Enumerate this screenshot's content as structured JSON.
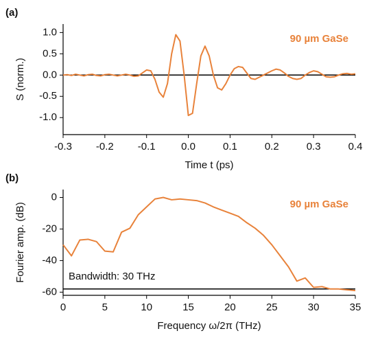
{
  "chart_data": [
    {
      "type": "line",
      "panel_label": "(a)",
      "ylabel": "S (norm.)",
      "xlabel": "Time t (ps)",
      "annotation": "90 µm GaSe",
      "color": "#e8823a",
      "hline": 0,
      "x": [
        -0.3,
        -0.29,
        -0.28,
        -0.27,
        -0.26,
        -0.25,
        -0.24,
        -0.23,
        -0.22,
        -0.21,
        -0.2,
        -0.19,
        -0.18,
        -0.17,
        -0.16,
        -0.15,
        -0.14,
        -0.13,
        -0.12,
        -0.11,
        -0.1,
        -0.09,
        -0.08,
        -0.07,
        -0.06,
        -0.05,
        -0.04,
        -0.03,
        -0.02,
        -0.01,
        0,
        0.01,
        0.02,
        0.03,
        0.04,
        0.05,
        0.06,
        0.07,
        0.08,
        0.09,
        0.1,
        0.11,
        0.12,
        0.13,
        0.14,
        0.15,
        0.16,
        0.17,
        0.18,
        0.19,
        0.2,
        0.21,
        0.22,
        0.23,
        0.24,
        0.25,
        0.26,
        0.27,
        0.28,
        0.29,
        0.3,
        0.31,
        0.32,
        0.33,
        0.34,
        0.35,
        0.36,
        0.37,
        0.38,
        0.39,
        0.4
      ],
      "values": [
        0,
        0.01,
        -0.01,
        0.02,
        0,
        -0.02,
        0.01,
        0.02,
        -0.01,
        -0.02,
        0.01,
        0.02,
        0,
        -0.02,
        0,
        0.02,
        0,
        -0.03,
        -0.02,
        0.05,
        0.12,
        0.1,
        -0.1,
        -0.4,
        -0.52,
        -0.2,
        0.5,
        0.95,
        0.8,
        0,
        -0.95,
        -0.9,
        -0.2,
        0.45,
        0.68,
        0.45,
        0,
        -0.3,
        -0.35,
        -0.2,
        0,
        0.15,
        0.2,
        0.18,
        0.05,
        -0.08,
        -0.1,
        -0.05,
        0,
        0.05,
        0.1,
        0.14,
        0.12,
        0.05,
        -0.03,
        -0.08,
        -0.1,
        -0.08,
        0,
        0.06,
        0.1,
        0.08,
        0.02,
        -0.04,
        -0.05,
        -0.04,
        0,
        0.03,
        0.04,
        0.02,
        0.03
      ],
      "xlim": [
        -0.3,
        0.4
      ],
      "ylim": [
        -1.4,
        1.2
      ],
      "xticks": [
        -0.3,
        -0.2,
        -0.1,
        {
          "value": 0,
          "label": "0.0"
        },
        0.1,
        0.2,
        0.3,
        0.4
      ],
      "yticks": [
        {
          "value": 1,
          "label": "1.0"
        },
        0.5,
        {
          "value": 0,
          "label": "0.0"
        },
        -0.5,
        {
          "value": -1,
          "label": "-1.0"
        }
      ]
    },
    {
      "type": "line",
      "panel_label": "(b)",
      "ylabel": "Fourier amp. (dB)",
      "xlabel": "Frequency ω/2π (THz)",
      "annotation": "90 µm GaSe",
      "hline_label": "Bandwidth: 30 THz",
      "color": "#e8823a",
      "hline": -58,
      "x": [
        0,
        1,
        2,
        3,
        4,
        5,
        6,
        7,
        8,
        9,
        10,
        11,
        12,
        13,
        14,
        15,
        16,
        17,
        18,
        19,
        20,
        21,
        22,
        23,
        24,
        25,
        26,
        27,
        28,
        29,
        30,
        31,
        32,
        33,
        34,
        35
      ],
      "values": [
        -30,
        -37,
        -27,
        -26.5,
        -28,
        -34,
        -34.5,
        -22,
        -19.5,
        -11,
        -6,
        -1,
        0,
        -1.5,
        -1,
        -1.5,
        -2,
        -3.5,
        -6,
        -8,
        -10,
        -12,
        -16,
        -19.5,
        -24,
        -30,
        -37,
        -44,
        -53,
        -51,
        -57,
        -56.5,
        -58,
        -58,
        -58.5,
        -59
      ],
      "xlim": [
        0,
        35
      ],
      "ylim": [
        -62,
        5
      ],
      "xticks": [
        0,
        5,
        10,
        15,
        20,
        25,
        30,
        35
      ],
      "yticks": [
        0,
        -20,
        -40,
        -60
      ]
    }
  ]
}
